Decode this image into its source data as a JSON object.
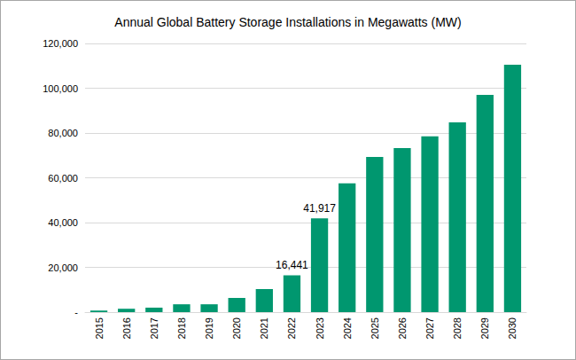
{
  "chart_data": {
    "type": "bar",
    "title": "Annual Global Battery Storage Installations in Megawatts (MW)",
    "categories": [
      "2015",
      "2016",
      "2017",
      "2018",
      "2019",
      "2020",
      "2021",
      "2022",
      "2023",
      "2024",
      "2025",
      "2026",
      "2027",
      "2028",
      "2029",
      "2030"
    ],
    "values": [
      700,
      1500,
      2000,
      3500,
      3500,
      6300,
      10300,
      16441,
      41917,
      57500,
      69300,
      73300,
      78500,
      84800,
      97000,
      110500
    ],
    "value_labels": [
      null,
      null,
      null,
      null,
      null,
      null,
      null,
      "16,441",
      "41,917",
      null,
      null,
      null,
      null,
      null,
      null,
      null
    ],
    "data_labels": true,
    "color": "#00976f",
    "ylim": [
      0,
      120000
    ],
    "yticks": [
      {
        "value": 0,
        "label": "-"
      },
      {
        "value": 20000,
        "label": "20,000"
      },
      {
        "value": 40000,
        "label": "40,000"
      },
      {
        "value": 60000,
        "label": "60,000"
      },
      {
        "value": 80000,
        "label": "80,000"
      },
      {
        "value": 100000,
        "label": "100,000"
      },
      {
        "value": 120000,
        "label": "120,000"
      }
    ],
    "grid": true
  }
}
